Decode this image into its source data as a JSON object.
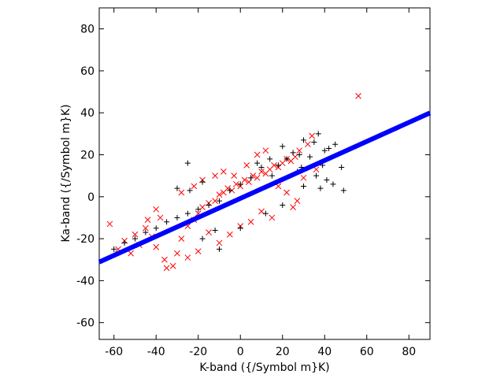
{
  "chart_data": {
    "type": "scatter",
    "title": "",
    "xlabel": "K-band ({/Symbol m}K)",
    "ylabel": "Ka-band ({/Symbol m}K)",
    "xlim": [
      -67,
      90
    ],
    "ylim": [
      -68,
      90
    ],
    "xticks": [
      -60,
      -40,
      -20,
      0,
      20,
      40,
      60,
      80
    ],
    "yticks": [
      -60,
      -40,
      -20,
      0,
      20,
      40,
      60,
      80
    ],
    "grid": false,
    "legend": "none",
    "colors": {
      "series_plus": "#000000",
      "series_x": "#ff0000",
      "fit_line": "#0000ff"
    },
    "series": [
      {
        "marker": "plus",
        "points": [
          [
            -25,
            16
          ],
          [
            -10,
            -25
          ],
          [
            42,
            23
          ],
          [
            48,
            14
          ],
          [
            37,
            30
          ],
          [
            45,
            25
          ],
          [
            40,
            22
          ],
          [
            35,
            26
          ],
          [
            44,
            6
          ],
          [
            49,
            3
          ],
          [
            41,
            8
          ],
          [
            38,
            4
          ],
          [
            36,
            10
          ],
          [
            33,
            19
          ],
          [
            30,
            27
          ],
          [
            29,
            14
          ],
          [
            25,
            21
          ],
          [
            22,
            18
          ],
          [
            27,
            12
          ],
          [
            28,
            20
          ],
          [
            20,
            24
          ],
          [
            18,
            15
          ],
          [
            15,
            10
          ],
          [
            10,
            14
          ],
          [
            5,
            9
          ],
          [
            0,
            6
          ],
          [
            -5,
            3
          ],
          [
            -10,
            -2
          ],
          [
            -15,
            -4
          ],
          [
            -20,
            -6
          ],
          [
            -25,
            -8
          ],
          [
            -30,
            -10
          ],
          [
            -35,
            -12
          ],
          [
            -40,
            -15
          ],
          [
            -45,
            -17
          ],
          [
            -50,
            -20
          ],
          [
            -55,
            -22
          ],
          [
            -60,
            -25
          ],
          [
            12,
            -8
          ],
          [
            20,
            -4
          ],
          [
            -18,
            7
          ],
          [
            -24,
            3
          ],
          [
            -30,
            4
          ],
          [
            8,
            16
          ],
          [
            14,
            18
          ],
          [
            0,
            -15
          ],
          [
            -12,
            -16
          ],
          [
            -18,
            -20
          ],
          [
            30,
            5
          ],
          [
            39,
            15
          ]
        ]
      },
      {
        "marker": "x",
        "points": [
          [
            56,
            48
          ],
          [
            -62,
            -13
          ],
          [
            -58,
            -25
          ],
          [
            -55,
            -21
          ],
          [
            -52,
            -27
          ],
          [
            -50,
            -18
          ],
          [
            -48,
            -23
          ],
          [
            -45,
            -15
          ],
          [
            -42,
            -19
          ],
          [
            -40,
            -24
          ],
          [
            -38,
            -10
          ],
          [
            -36,
            -30
          ],
          [
            -35,
            -34
          ],
          [
            -32,
            -33
          ],
          [
            -30,
            -27
          ],
          [
            -28,
            -20
          ],
          [
            -25,
            -14
          ],
          [
            -22,
            -11
          ],
          [
            -20,
            -8
          ],
          [
            -18,
            -5
          ],
          [
            -15,
            -3
          ],
          [
            -12,
            -2
          ],
          [
            -10,
            1
          ],
          [
            -8,
            2
          ],
          [
            -6,
            4
          ],
          [
            -4,
            3
          ],
          [
            -2,
            6
          ],
          [
            0,
            5
          ],
          [
            2,
            8
          ],
          [
            4,
            7
          ],
          [
            6,
            10
          ],
          [
            8,
            9
          ],
          [
            10,
            12
          ],
          [
            12,
            11
          ],
          [
            14,
            13
          ],
          [
            16,
            15
          ],
          [
            18,
            14
          ],
          [
            20,
            16
          ],
          [
            22,
            18
          ],
          [
            24,
            17
          ],
          [
            26,
            19
          ],
          [
            28,
            22
          ],
          [
            30,
            9
          ],
          [
            32,
            25
          ],
          [
            34,
            29
          ],
          [
            25,
            -5
          ],
          [
            27,
            -2
          ],
          [
            15,
            -10
          ],
          [
            10,
            -7
          ],
          [
            5,
            -12
          ],
          [
            0,
            -14
          ],
          [
            -5,
            -18
          ],
          [
            -10,
            -22
          ],
          [
            -15,
            -17
          ],
          [
            -20,
            -26
          ],
          [
            -25,
            -29
          ],
          [
            -8,
            12
          ],
          [
            -12,
            10
          ],
          [
            -18,
            8
          ],
          [
            -22,
            5
          ],
          [
            -28,
            2
          ],
          [
            8,
            20
          ],
          [
            12,
            22
          ],
          [
            3,
            15
          ],
          [
            -3,
            10
          ],
          [
            18,
            5
          ],
          [
            22,
            2
          ],
          [
            -40,
            -6
          ],
          [
            -44,
            -11
          ],
          [
            36,
            13
          ]
        ]
      }
    ],
    "fit_line": {
      "slope": 0.4528,
      "intercept": -0.8
    }
  }
}
